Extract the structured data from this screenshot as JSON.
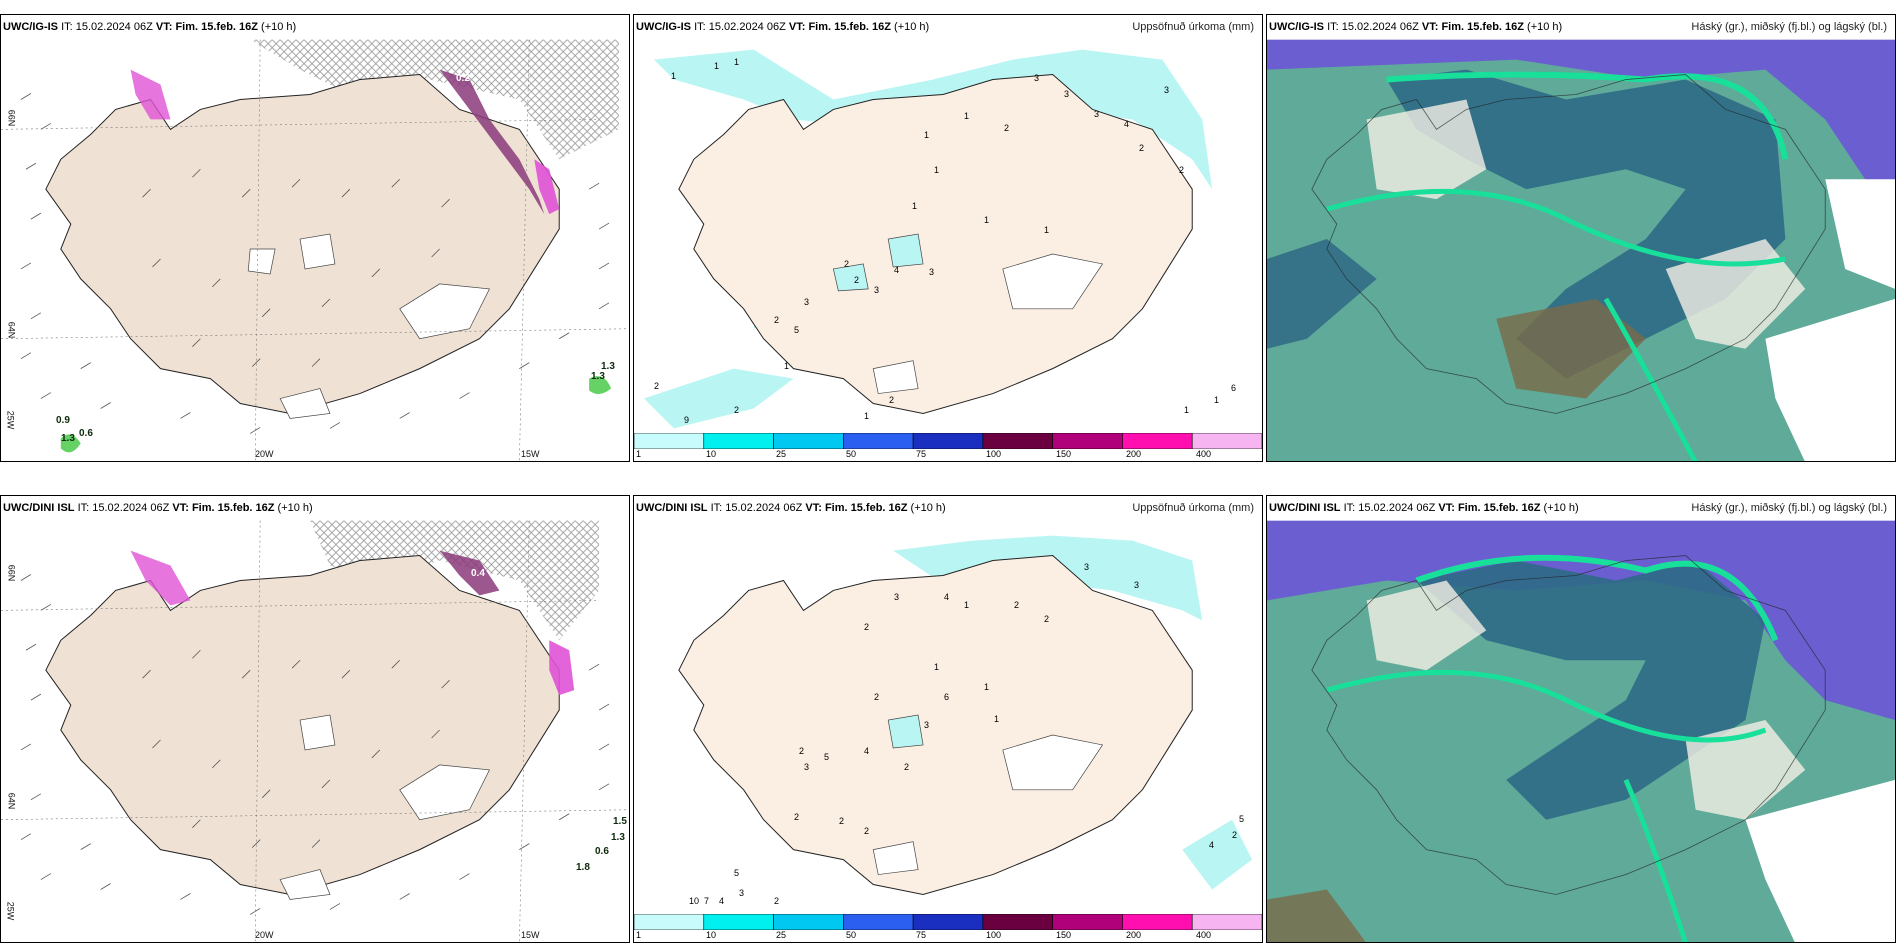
{
  "rows": [
    {
      "model": "UWC/IG-IS",
      "it": "15.02.2024 06Z",
      "vt": "Fim. 15.feb. 16Z",
      "lead": "(+10 h)",
      "precip_labels": [
        "1",
        "1",
        "1",
        "1",
        "1",
        "2",
        "3",
        "3",
        "3",
        "4",
        "3",
        "2",
        "2",
        "1",
        "1",
        "2",
        "2",
        "3",
        "4",
        "3",
        "3",
        "2",
        "5",
        "1",
        "2",
        "9",
        "3",
        "2",
        "6",
        "1",
        "1",
        "2",
        "1",
        "1",
        "1"
      ],
      "cloud_values": [
        "0.9",
        "0.6",
        "1.3",
        "1.3",
        "1.3",
        "0.2"
      ]
    },
    {
      "model": "UWC/DINI ISL",
      "it": "15.02.2024 06Z",
      "vt": "Fim. 15.feb. 16Z",
      "lead": "(+10 h)",
      "precip_labels": [
        "3",
        "2",
        "4",
        "1",
        "2",
        "2",
        "3",
        "3",
        "1",
        "1",
        "2",
        "6",
        "3",
        "1",
        "2",
        "5",
        "3",
        "4",
        "2",
        "2",
        "2",
        "2",
        "10",
        "7",
        "4",
        "3",
        "2",
        "5",
        "2",
        "4",
        "5"
      ],
      "cloud_values": [
        "0.4",
        "1.3",
        "0.6",
        "1.8",
        "1.5"
      ]
    }
  ],
  "labels": {
    "it_label": "IT:",
    "vt_label": "VT:",
    "precip_title": "Uppsöfnuð úrkoma (mm)",
    "cloud_title": "Háský (gr.), miðský (fj.bl.) og lágský (bl.)",
    "lat_66": "66N",
    "lat_64": "64N",
    "lat_25w": "25W",
    "lon_20w": "20W",
    "lon_15w": "15W"
  },
  "legend": {
    "ticks": [
      "1",
      "10",
      "25",
      "50",
      "75",
      "100",
      "150",
      "200",
      "400"
    ],
    "colors": [
      "#c8fbfb",
      "#00f0f0",
      "#00c8f0",
      "#2a5ff0",
      "#1a2fbf",
      "#6a0040",
      "#b0007a",
      "#ff0fb0",
      "#f6b4f0"
    ]
  },
  "colors": {
    "land": "#efe1d3",
    "sea": "#ffffff",
    "precip_light": "#b9f5f3",
    "cloud_teal": "#5faa98",
    "cloud_blue": "#2f6a86",
    "cloud_purple": "#6a5ed0",
    "cloud_green": "#18e09b",
    "snow_purple": "#8a3a7a"
  }
}
